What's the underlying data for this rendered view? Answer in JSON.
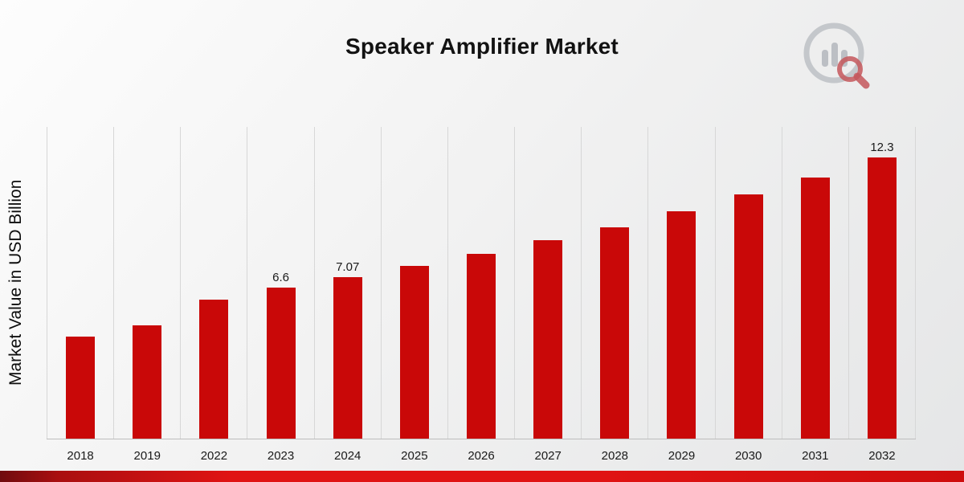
{
  "title": "Speaker Amplifier Market",
  "ylabel": "Market Value in USD Billion",
  "logo": {
    "name": "analytics-magnifier-logo"
  },
  "colors": {
    "bar": "#c90808",
    "grid": "#d7d7d7",
    "axis": "#bdbdbd",
    "footer_gradient_left": "#6f0c0e",
    "footer_gradient_right": "#ce0d0d",
    "background_light": "#fdfdfd",
    "background_dark": "#e5e6e7"
  },
  "chart_data": {
    "type": "bar",
    "title": "Speaker Amplifier Market",
    "xlabel": "",
    "ylabel": "Market Value in USD Billion",
    "categories": [
      "2018",
      "2019",
      "2022",
      "2023",
      "2024",
      "2025",
      "2026",
      "2027",
      "2028",
      "2029",
      "2030",
      "2031",
      "2032"
    ],
    "values": [
      4.46,
      4.95,
      6.1,
      6.6,
      7.07,
      7.58,
      8.1,
      8.7,
      9.26,
      9.96,
      10.7,
      11.44,
      12.3
    ],
    "data_labels": {
      "2023": "6.6",
      "2024": "7.07",
      "2032": "12.3"
    },
    "ylim": [
      0,
      13.65
    ],
    "grid": "vertical",
    "legend": "none"
  }
}
